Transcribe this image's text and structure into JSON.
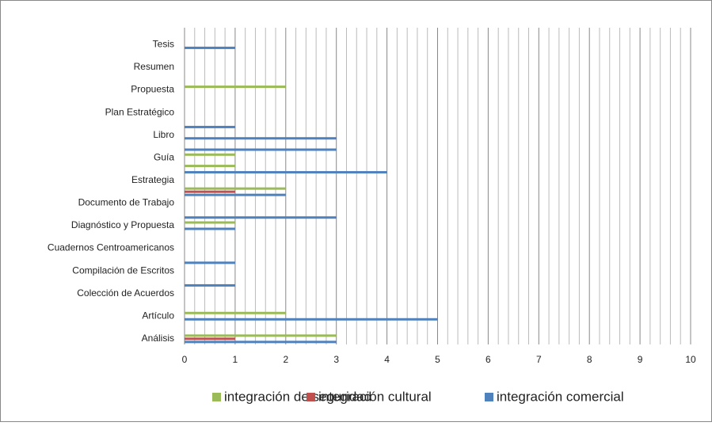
{
  "chart_data": {
    "type": "hbar",
    "categories": [
      "Análisis",
      null,
      "Artículo",
      null,
      "Colección de Acuerdos",
      null,
      "Compilación de Escritos",
      null,
      "Cuadernos Centroamericanos",
      null,
      "Diagnóstico y Propuesta",
      null,
      "Documento de Trabajo",
      null,
      "Estrategia",
      null,
      "Guía",
      null,
      "Libro",
      null,
      "Plan Estratégico",
      null,
      "Propuesta",
      null,
      "Resumen",
      null,
      "Tesis",
      null
    ],
    "series": [
      {
        "name": "integración de seguridad",
        "color": "#9bbb59",
        "values": [
          3,
          null,
          2,
          null,
          null,
          null,
          null,
          null,
          null,
          null,
          1,
          null,
          null,
          2,
          null,
          1,
          1,
          null,
          null,
          null,
          null,
          null,
          2,
          null,
          null,
          null,
          null,
          null
        ]
      },
      {
        "name": "integración cultural",
        "color": "#c0504d",
        "values": [
          1,
          null,
          null,
          null,
          null,
          null,
          null,
          null,
          null,
          null,
          null,
          null,
          null,
          1,
          null,
          null,
          null,
          null,
          null,
          null,
          null,
          null,
          null,
          null,
          null,
          null,
          null,
          null
        ]
      },
      {
        "name": "integración comercial",
        "color": "#4f81bd",
        "values": [
          3,
          null,
          5,
          null,
          null,
          1,
          null,
          1,
          null,
          null,
          1,
          3,
          null,
          2,
          null,
          4,
          null,
          3,
          3,
          1,
          null,
          null,
          null,
          null,
          null,
          null,
          1,
          null
        ]
      }
    ],
    "xlim": [
      0,
      10
    ],
    "xticks": [
      0,
      1,
      2,
      3,
      4,
      5,
      6,
      7,
      8,
      9,
      10
    ],
    "grid": true,
    "legend": "bottom"
  }
}
